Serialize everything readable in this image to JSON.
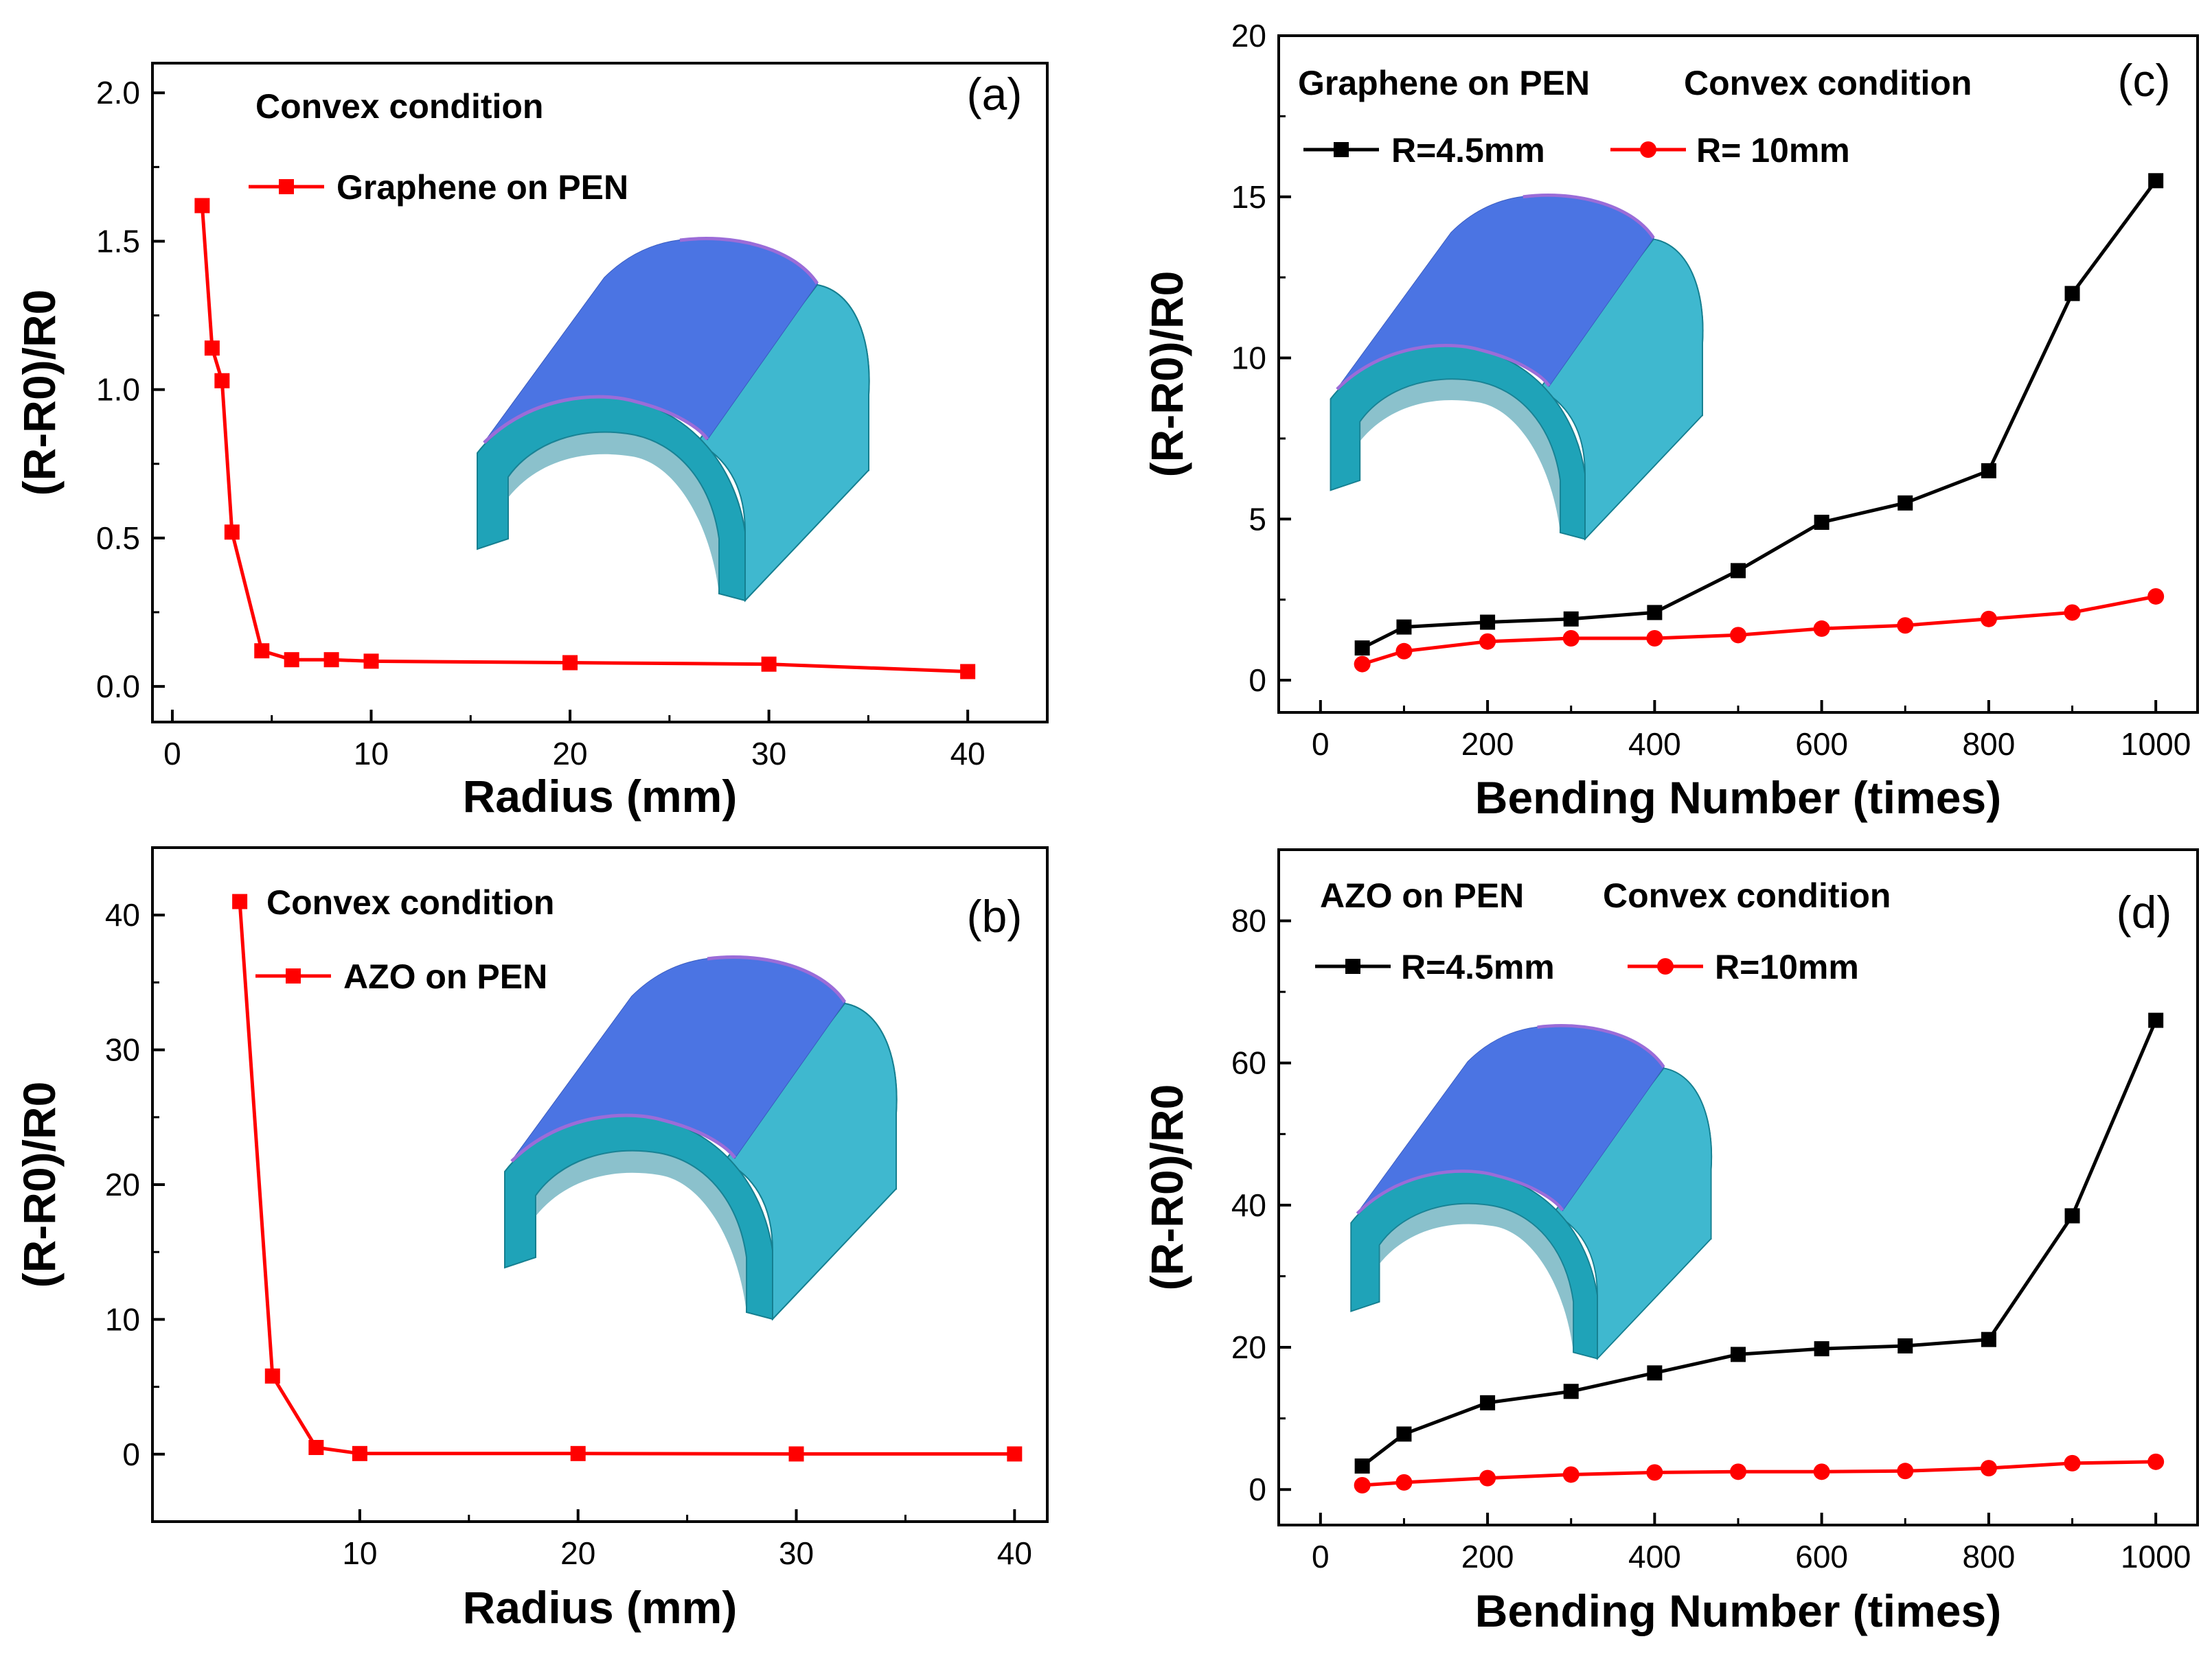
{
  "chart_data": [
    {
      "panel": "(a)",
      "type": "line",
      "title": "",
      "condition": "Convex condition",
      "xlabel": "Radius (mm)",
      "ylabel": "(R-R0)/R0",
      "xlim": [
        -1,
        44
      ],
      "ylim": [
        -0.12,
        2.1
      ],
      "xticks": [
        0,
        10,
        20,
        30,
        40
      ],
      "xtick_labels": [
        "0",
        "10",
        "20",
        "30",
        "40"
      ],
      "yticks": [
        0.0,
        0.5,
        1.0,
        1.5,
        2.0
      ],
      "ytick_labels": [
        "0.0",
        "0.5",
        "1.0",
        "1.5",
        "2.0"
      ],
      "series": [
        {
          "name": "Graphene on PEN",
          "color": "#ff0000",
          "marker": "square",
          "x": [
            1.5,
            2,
            2.5,
            3,
            4.5,
            6,
            8,
            10,
            20,
            30,
            40
          ],
          "y": [
            1.62,
            1.14,
            1.03,
            0.52,
            0.12,
            0.09,
            0.09,
            0.085,
            0.08,
            0.075,
            0.05
          ]
        }
      ]
    },
    {
      "panel": "(b)",
      "type": "line",
      "title": "",
      "condition": "Convex condition",
      "xlabel": "Radius (mm)",
      "ylabel": "(R-R0)/R0",
      "xlim": [
        0.5,
        41.5
      ],
      "ylim": [
        -5,
        45
      ],
      "xticks": [
        10,
        20,
        30,
        40
      ],
      "xtick_labels": [
        "10",
        "20",
        "30",
        "40"
      ],
      "yticks": [
        0,
        10,
        20,
        30,
        40
      ],
      "ytick_labels": [
        "0",
        "10",
        "20",
        "30",
        "40"
      ],
      "series": [
        {
          "name": "AZO on PEN",
          "color": "#ff0000",
          "marker": "square",
          "x": [
            4.5,
            6,
            8,
            10,
            20,
            30,
            40
          ],
          "y": [
            41,
            5.8,
            0.5,
            0.05,
            0.05,
            0.02,
            0.02
          ]
        }
      ]
    },
    {
      "panel": "(c)",
      "type": "line",
      "title": "",
      "condition": "Convex condition",
      "material": "Graphene on PEN",
      "xlabel": "Bending Number (times)",
      "ylabel": "(R-R0)/R0",
      "xlim": [
        -50,
        1050
      ],
      "ylim": [
        -1,
        20
      ],
      "xticks": [
        0,
        200,
        400,
        600,
        800,
        1000
      ],
      "xtick_labels": [
        "0",
        "200",
        "400",
        "600",
        "800",
        "1000"
      ],
      "yticks": [
        0,
        5,
        10,
        15,
        20
      ],
      "ytick_labels": [
        "0",
        "5",
        "10",
        "15",
        "20"
      ],
      "series": [
        {
          "name": "R=4.5mm",
          "color": "#000000",
          "marker": "square",
          "x": [
            50,
            100,
            200,
            300,
            400,
            500,
            600,
            700,
            800,
            900,
            1000
          ],
          "y": [
            1.0,
            1.65,
            1.8,
            1.9,
            2.1,
            3.4,
            4.9,
            5.5,
            6.5,
            12.0,
            15.5
          ]
        },
        {
          "name": "R= 10mm",
          "color": "#ff0000",
          "marker": "circle",
          "x": [
            50,
            100,
            200,
            300,
            400,
            500,
            600,
            700,
            800,
            900,
            1000
          ],
          "y": [
            0.5,
            0.9,
            1.2,
            1.3,
            1.3,
            1.4,
            1.6,
            1.7,
            1.9,
            2.1,
            2.6
          ]
        }
      ]
    },
    {
      "panel": "(d)",
      "type": "line",
      "title": "",
      "condition": "Convex condition",
      "material": "AZO on PEN",
      "xlabel": "Bending Number (times)",
      "ylabel": "(R-R0)/R0",
      "xlim": [
        -50,
        1050
      ],
      "ylim": [
        -5,
        90
      ],
      "xticks": [
        0,
        200,
        400,
        600,
        800,
        1000
      ],
      "xtick_labels": [
        "0",
        "200",
        "400",
        "600",
        "800",
        "1000"
      ],
      "yticks": [
        0,
        20,
        40,
        60,
        80
      ],
      "ytick_labels": [
        "0",
        "20",
        "40",
        "60",
        "80"
      ],
      "series": [
        {
          "name": "R=4.5mm",
          "color": "#000000",
          "marker": "square",
          "x": [
            50,
            100,
            200,
            300,
            400,
            500,
            600,
            700,
            800,
            900,
            1000
          ],
          "y": [
            3.3,
            7.8,
            12.2,
            13.8,
            16.4,
            19.0,
            19.8,
            20.2,
            21.1,
            38.5,
            66.0
          ]
        },
        {
          "name": "R=10mm",
          "color": "#ff0000",
          "marker": "circle",
          "x": [
            50,
            100,
            200,
            300,
            400,
            500,
            600,
            700,
            800,
            900,
            1000
          ],
          "y": [
            0.6,
            1.0,
            1.6,
            2.1,
            2.4,
            2.5,
            2.5,
            2.6,
            3.0,
            3.7,
            3.9
          ]
        }
      ]
    }
  ],
  "colors": {
    "axis": "#000000",
    "red": "#ff0000",
    "black": "#000000",
    "half_pipe_outer": "#3fb8cf",
    "half_pipe_side": "#1fa3b8",
    "film_top": "#4a70e0",
    "film_edge": "#9b6cd8"
  }
}
